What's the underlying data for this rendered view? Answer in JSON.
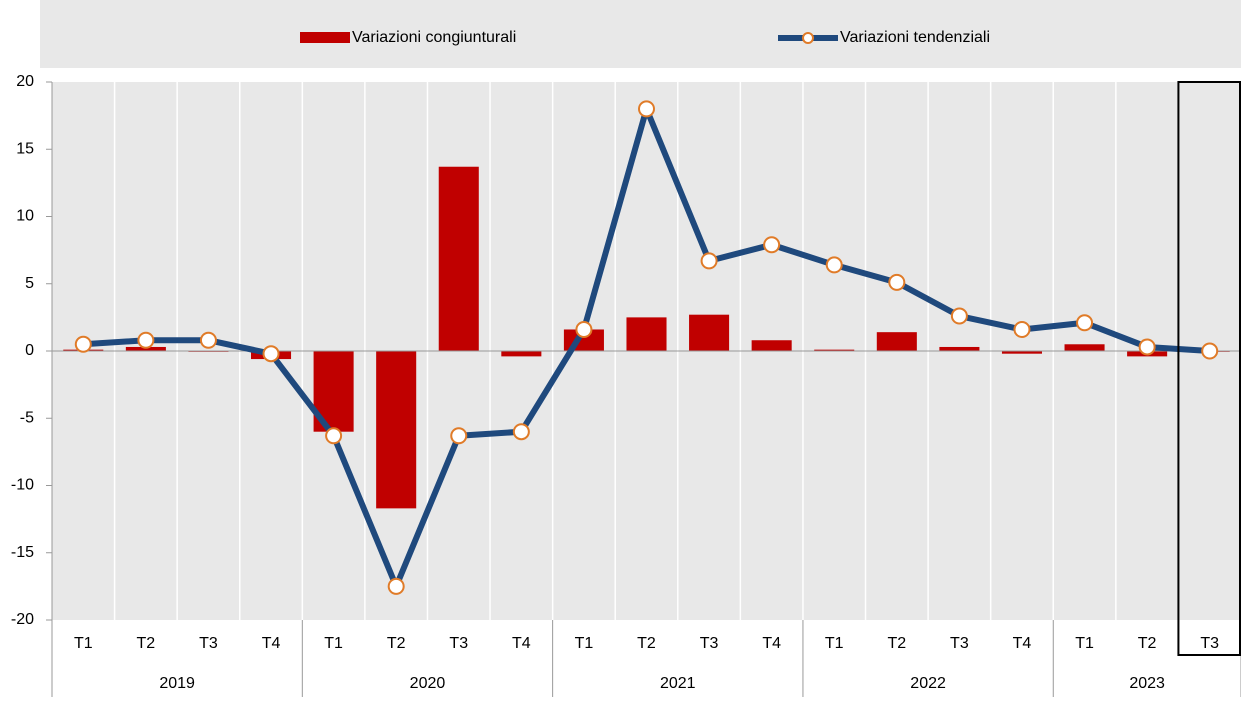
{
  "chart_data": {
    "type": "bar-line",
    "categories": [
      "T1",
      "T2",
      "T3",
      "T4",
      "T1",
      "T2",
      "T3",
      "T4",
      "T1",
      "T2",
      "T3",
      "T4",
      "T1",
      "T2",
      "T3",
      "T4",
      "T1",
      "T2",
      "T3"
    ],
    "year_groups": [
      {
        "label": "2019",
        "count": 4
      },
      {
        "label": "2020",
        "count": 4
      },
      {
        "label": "2021",
        "count": 4
      },
      {
        "label": "2022",
        "count": 4
      },
      {
        "label": "2023",
        "count": 3
      }
    ],
    "series": [
      {
        "name": "Variazioni congiunturali",
        "type": "bar",
        "color": "#c00000",
        "values": [
          0.1,
          0.3,
          0.0,
          -0.6,
          -6.0,
          -11.7,
          13.7,
          -0.4,
          1.6,
          2.5,
          2.7,
          0.8,
          0.1,
          1.4,
          0.3,
          -0.2,
          0.5,
          -0.4,
          0.0
        ]
      },
      {
        "name": "Variazioni tendenziali",
        "type": "line",
        "color": "#1f497d",
        "marker_color": "#e07b28",
        "values": [
          0.5,
          0.8,
          0.8,
          -0.2,
          -6.3,
          -17.5,
          -6.3,
          -6.0,
          1.6,
          18.0,
          6.7,
          7.9,
          6.4,
          5.1,
          2.6,
          1.6,
          2.1,
          0.3,
          0.0
        ]
      }
    ],
    "ylim": [
      -20,
      20
    ],
    "yticks": [
      -20,
      -15,
      -10,
      -5,
      0,
      5,
      10,
      15,
      20
    ],
    "grid": true
  }
}
